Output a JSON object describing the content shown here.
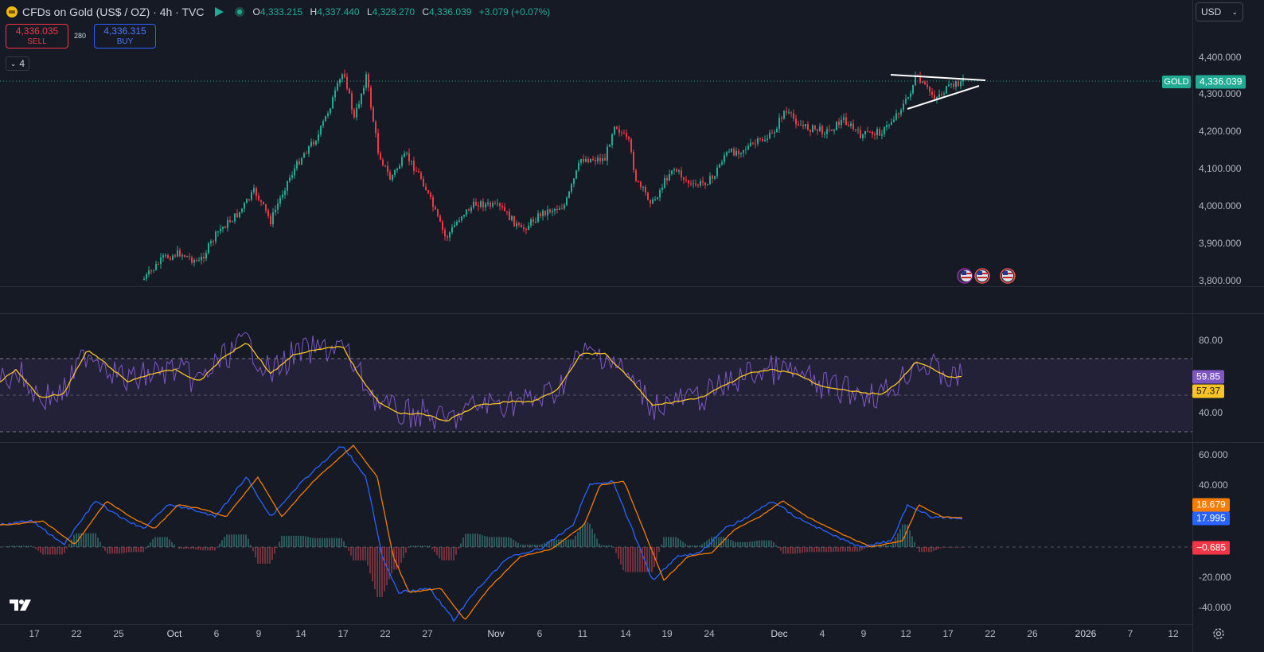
{
  "header": {
    "title": "CFDs on Gold (US$ / OZ) · 4h · TVC",
    "ohlc": [
      {
        "k": "O",
        "v": "4,333.215"
      },
      {
        "k": "H",
        "v": "4,337.440"
      },
      {
        "k": "L",
        "v": "4,328.270"
      },
      {
        "k": "C",
        "v": "4,336.039"
      }
    ],
    "change": "+3.079 (+0.07%)"
  },
  "trade": {
    "sell_price": "4,336.035",
    "sell_label": "SELL",
    "spread": "280",
    "buy_price": "4,336.315",
    "buy_label": "BUY"
  },
  "indicators_toggle": "4",
  "currency": "USD",
  "symbol_label": "GOLD",
  "last_price": "4,336.039",
  "price_axis": [
    "4,400.000",
    "4,300.000",
    "4,200.000",
    "4,100.000",
    "4,000.000",
    "3,900.000",
    "3,800.000"
  ],
  "rsi_axis": [
    "80.00",
    "40.00"
  ],
  "rsi_values": {
    "rsi": "59.85",
    "ma": "57.37"
  },
  "macd_axis": [
    "60.000",
    "40.000",
    "-20.000",
    "-40.000"
  ],
  "macd_values": {
    "signal": "18.679",
    "macd": "17.995",
    "hist": "−0.685"
  },
  "time_axis": [
    "17",
    "22",
    "25",
    "Oct",
    "6",
    "9",
    "14",
    "17",
    "22",
    "27",
    "Nov",
    "6",
    "11",
    "14",
    "19",
    "24",
    "Dec",
    "4",
    "9",
    "12",
    "17",
    "22",
    "26",
    "2026",
    "7",
    "12"
  ],
  "colors": {
    "up": "#22ab94",
    "down": "#f23645",
    "rsi": "#7e57c2",
    "rsi_ma": "#f7c325",
    "macd": "#2962ff",
    "signal": "#f57c00"
  },
  "icons": [
    "gold-icon",
    "market-open-flag-icon",
    "data-status-icon",
    "tradingview-logo-icon",
    "settings-gear-icon",
    "us-flag-event-icon"
  ]
}
